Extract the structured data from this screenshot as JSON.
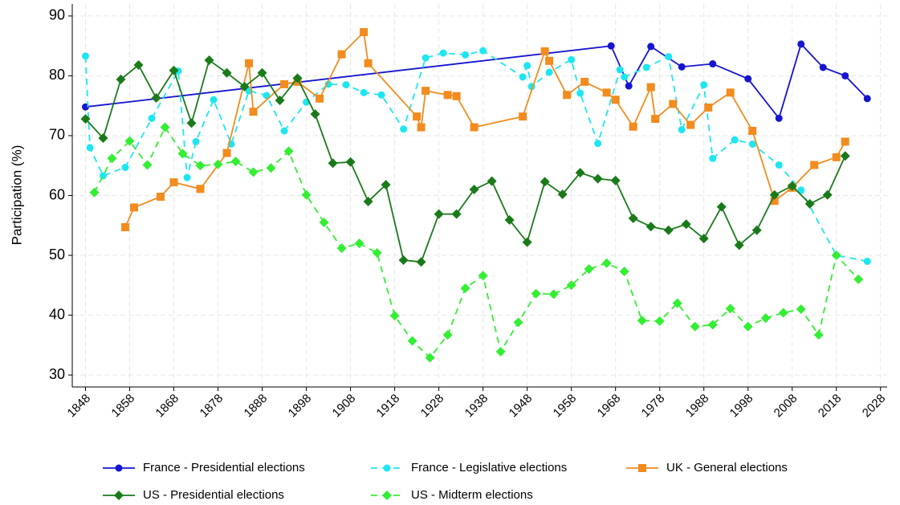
{
  "chart_data": {
    "type": "line",
    "y_label": "Participation (%)",
    "xlim": [
      1845,
      2029.5
    ],
    "ylim": [
      28,
      92
    ],
    "xticks": [
      1848,
      1858,
      1868,
      1878,
      1888,
      1898,
      1908,
      1918,
      1928,
      1938,
      1948,
      1958,
      1968,
      1978,
      1988,
      1998,
      2008,
      2018,
      2028
    ],
    "yticks": [
      30,
      40,
      50,
      60,
      70,
      80,
      90
    ],
    "grid": true,
    "legend": "bottom",
    "series": [
      {
        "name": "France - Presidential elections",
        "color": "#1515d0",
        "marker": "circle",
        "dashed": false,
        "x": [
          1848,
          1967,
          1971,
          1976,
          1983,
          1990,
          1998,
          2005,
          2010,
          2015,
          2020,
          2025
        ],
        "values": [
          74.8,
          85.0,
          78.3,
          84.9,
          81.5,
          82.0,
          79.5,
          72.9,
          85.3,
          81.4,
          80.0,
          76.2
        ]
      },
      {
        "name": "France - Legislative elections",
        "color": "#1ee6f0",
        "marker": "circle",
        "dashed": true,
        "x": [
          1848,
          1849,
          1852,
          1857,
          1863,
          1869,
          1871,
          1873,
          1877,
          1881,
          1885,
          1889,
          1893,
          1898,
          1903,
          1907,
          1911,
          1915,
          1920,
          1925,
          1929,
          1934,
          1938,
          1947,
          1948,
          1949,
          1953,
          1958,
          1960,
          1964,
          1969,
          1970,
          1975,
          1980,
          1983,
          1988,
          1990,
          1995,
          1999,
          2005,
          2010,
          2018,
          2025
        ],
        "values": [
          83.3,
          68.0,
          63.3,
          64.7,
          72.9,
          80.8,
          63.0,
          69.0,
          76.0,
          68.6,
          77.5,
          76.7,
          70.8,
          75.6,
          78.6,
          78.5,
          77.2,
          76.8,
          71.1,
          83.0,
          83.8,
          83.5,
          84.2,
          79.8,
          81.7,
          78.2,
          80.6,
          82.7,
          77.1,
          68.7,
          81.0,
          79.8,
          81.4,
          83.2,
          71.0,
          78.5,
          66.2,
          69.3,
          68.6,
          65.1,
          60.9,
          50.0,
          49.0
        ]
      },
      {
        "name": "UK - General elections",
        "color": "#f28c1e",
        "marker": "square",
        "dashed": false,
        "x": [
          1857,
          1859,
          1865,
          1868,
          1874,
          1880,
          1885,
          1886,
          1893,
          1896,
          1901,
          1906,
          1911,
          1912,
          1923,
          1924,
          1925,
          1930,
          1932,
          1936,
          1947,
          1952,
          1953,
          1957,
          1961,
          1966,
          1968,
          1972,
          1976,
          1977,
          1981,
          1985,
          1989,
          1994,
          1999,
          2004,
          2008,
          2013,
          2018,
          2020
        ],
        "values": [
          54.7,
          58.0,
          59.8,
          62.2,
          61.1,
          67.1,
          82.1,
          74.0,
          78.6,
          79.0,
          76.2,
          83.6,
          87.3,
          82.1,
          73.2,
          71.4,
          77.5,
          76.8,
          76.6,
          71.4,
          73.2,
          84.1,
          82.5,
          76.8,
          79.0,
          77.2,
          76.0,
          71.5,
          78.1,
          72.8,
          75.3,
          71.8,
          74.7,
          77.2,
          70.8,
          59.1,
          61.3,
          65.1,
          66.4,
          69.0
        ]
      },
      {
        "name": "US - Presidential elections",
        "color": "#1a7a1a",
        "marker": "diamond",
        "dashed": false,
        "x": [
          1848,
          1852,
          1856,
          1860,
          1864,
          1868,
          1872,
          1876,
          1880,
          1884,
          1888,
          1892,
          1896,
          1900,
          1904,
          1908,
          1912,
          1916,
          1920,
          1924,
          1928,
          1932,
          1936,
          1940,
          1944,
          1948,
          1952,
          1956,
          1960,
          1964,
          1968,
          1972,
          1976,
          1980,
          1984,
          1988,
          1992,
          1996,
          2000,
          2004,
          2008,
          2012,
          2016,
          2020
        ],
        "values": [
          72.8,
          69.6,
          79.4,
          81.8,
          76.3,
          80.9,
          72.1,
          82.6,
          80.5,
          78.2,
          80.5,
          75.9,
          79.6,
          73.6,
          65.4,
          65.6,
          59.0,
          61.8,
          49.2,
          48.9,
          56.9,
          56.9,
          61.0,
          62.4,
          55.9,
          52.2,
          62.3,
          60.2,
          63.8,
          62.8,
          62.5,
          56.2,
          54.8,
          54.2,
          55.2,
          52.8,
          58.1,
          51.7,
          54.2,
          60.1,
          61.6,
          58.6,
          60.1,
          66.6
        ]
      },
      {
        "name": "US - Midterm elections",
        "color": "#33ee33",
        "marker": "diamond",
        "dashed": true,
        "x": [
          1850,
          1854,
          1858,
          1862,
          1866,
          1870,
          1874,
          1878,
          1882,
          1886,
          1890,
          1894,
          1898,
          1902,
          1906,
          1910,
          1914,
          1918,
          1922,
          1926,
          1930,
          1934,
          1938,
          1942,
          1946,
          1950,
          1954,
          1958,
          1962,
          1966,
          1970,
          1974,
          1978,
          1982,
          1986,
          1990,
          1994,
          1998,
          2002,
          2006,
          2010,
          2014,
          2018,
          2023
        ],
        "values": [
          60.5,
          66.2,
          69.1,
          65.1,
          71.4,
          67.0,
          65.0,
          65.2,
          65.7,
          63.9,
          64.6,
          67.4,
          60.1,
          55.5,
          51.2,
          52.0,
          50.4,
          39.9,
          35.7,
          32.9,
          36.7,
          44.5,
          46.6,
          33.9,
          38.8,
          43.6,
          43.5,
          45.0,
          47.7,
          48.7,
          47.3,
          39.1,
          39.0,
          42.0,
          38.1,
          38.4,
          41.1,
          38.1,
          39.5,
          40.4,
          41.0,
          36.7,
          50.0,
          46.0
        ]
      }
    ]
  }
}
